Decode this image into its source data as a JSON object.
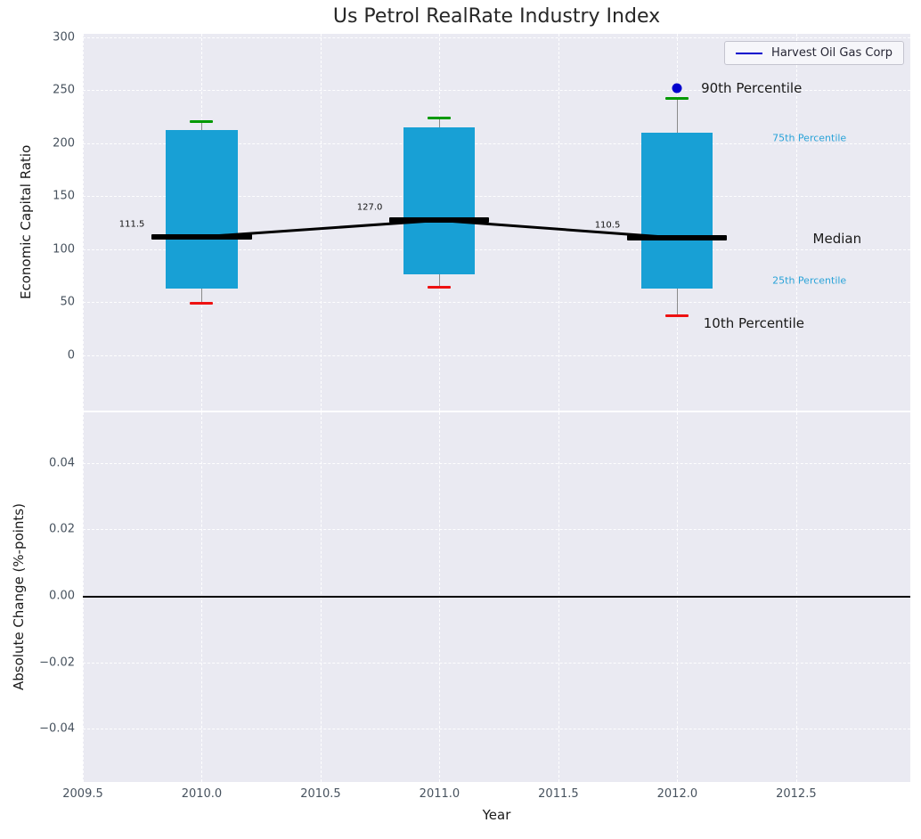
{
  "chart_data": {
    "type": "boxplot",
    "title": "Us Petrol RealRate Industry Index",
    "xlabel": "Year",
    "xticks": [
      "2009.5",
      "2010.0",
      "2010.5",
      "2011.0",
      "2011.5",
      "2012.0",
      "2012.5"
    ],
    "xtick_values": [
      2009.5,
      2010,
      2010.5,
      2011,
      2011.5,
      2012,
      2012.5
    ],
    "xlim": [
      2009.5,
      2012.98
    ],
    "legend": {
      "label": "Harvest Oil Gas Corp",
      "line_color": "#0000cd"
    },
    "colors": {
      "box": "#18a0d5",
      "whisker": "#8a8a8a",
      "cap_high": "#009900",
      "cap_low": "#ee1111",
      "median": "#000000",
      "company": "#0000cd",
      "axes_bg": "#eaeaf2",
      "grid": "#ffffff"
    },
    "panels": [
      {
        "id": "top",
        "ylabel": "Economic Capital Ratio",
        "yticks": [
          300,
          250,
          200,
          150,
          100,
          50,
          0
        ],
        "ytick_labels": [
          "300",
          "250",
          "200",
          "150",
          "100",
          "50",
          "0"
        ],
        "ylim": [
          -52.5,
          303
        ],
        "boxes": [
          {
            "x": 2010,
            "p10": 49,
            "p25": 63,
            "median": 111.5,
            "p75": 212,
            "p90": 220,
            "median_label": "111.5"
          },
          {
            "x": 2011,
            "p10": 64,
            "p25": 76,
            "median": 127.0,
            "p75": 215,
            "p90": 224,
            "median_label": "127.0"
          },
          {
            "x": 2012,
            "p10": 37,
            "p25": 63,
            "median": 110.5,
            "p75": 210,
            "p90": 242,
            "median_label": "110.5"
          }
        ],
        "median_trend": {
          "x": [
            2010,
            2011,
            2012
          ],
          "y": [
            111.5,
            127.0,
            110.5
          ]
        },
        "company_point": {
          "x": 2012,
          "y": 252
        },
        "annotations": [
          {
            "label": "90th Percentile",
            "x": 2012.1,
            "y": 252,
            "color": "#1a1a1a",
            "size": 15
          },
          {
            "label": "75th Percentile",
            "x": 2012.4,
            "y": 205,
            "color": "#2aa3d8",
            "size": 11
          },
          {
            "label": "Median",
            "x": 2012.57,
            "y": 110,
            "color": "#1a1a1a",
            "size": 15
          },
          {
            "label": "25th Percentile",
            "x": 2012.4,
            "y": 70,
            "color": "#2aa3d8",
            "size": 11
          },
          {
            "label": "10th Percentile",
            "x": 2012.11,
            "y": 30,
            "color": "#1a1a1a",
            "size": 15
          }
        ]
      },
      {
        "id": "bottom",
        "ylabel": "Absolute Change (%-points)",
        "yticks": [
          0.04,
          0.02,
          0,
          -0.02,
          -0.04
        ],
        "ytick_labels": [
          "0.04",
          "0.02",
          "0.00",
          "−0.02",
          "−0.04"
        ],
        "ylim": [
          -0.056,
          0.0552
        ],
        "zero_line": 0
      }
    ]
  }
}
